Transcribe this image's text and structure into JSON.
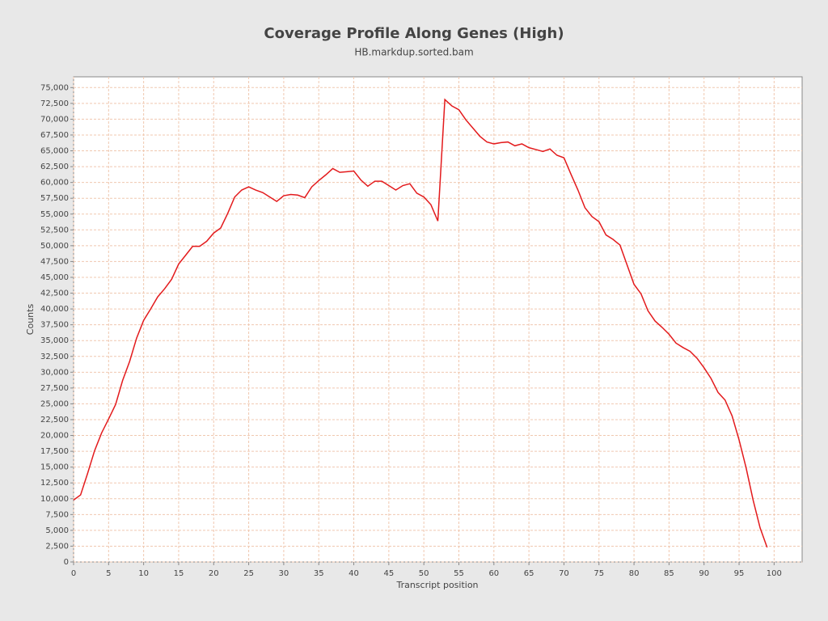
{
  "chart_data": {
    "type": "line",
    "title": "Coverage Profile Along Genes (High)",
    "subtitle": "HB.markdup.sorted.bam",
    "x_label": "Transcript position",
    "y_label": "Counts",
    "x": [
      0,
      1,
      2,
      3,
      4,
      5,
      6,
      7,
      8,
      9,
      10,
      11,
      12,
      13,
      14,
      15,
      16,
      17,
      18,
      19,
      20,
      21,
      22,
      23,
      24,
      25,
      26,
      27,
      28,
      29,
      30,
      31,
      32,
      33,
      34,
      35,
      36,
      37,
      38,
      39,
      40,
      41,
      42,
      43,
      44,
      45,
      46,
      47,
      48,
      49,
      50,
      51,
      52,
      53,
      54,
      55,
      56,
      57,
      58,
      59,
      60,
      61,
      62,
      63,
      64,
      65,
      66,
      67,
      68,
      69,
      70,
      71,
      72,
      73,
      74,
      75,
      76,
      77,
      78,
      79,
      80,
      81,
      82,
      83,
      84,
      85,
      86,
      87,
      88,
      89,
      90,
      91,
      92,
      93,
      94,
      95,
      96,
      97,
      98,
      99
    ],
    "series": [
      {
        "name": "Counts",
        "color": "#e31a1c",
        "values": [
          9800,
          10600,
          14000,
          17600,
          20400,
          22600,
          24900,
          28700,
          31700,
          35400,
          38200,
          40000,
          41900,
          43200,
          44700,
          47100,
          48500,
          49900,
          49900,
          50700,
          52000,
          52800,
          55100,
          57700,
          58800,
          59300,
          58800,
          58400,
          57700,
          57000,
          57900,
          58100,
          58000,
          57600,
          59300,
          60300,
          61200,
          62200,
          61600,
          61700,
          61800,
          60400,
          59400,
          60200,
          60200,
          59500,
          58800,
          59500,
          59800,
          58300,
          57700,
          56500,
          53900,
          73100,
          72100,
          71500,
          69900,
          68600,
          67300,
          66400,
          66100,
          66300,
          66400,
          65800,
          66100,
          65500,
          65200,
          64900,
          65300,
          64300,
          63900,
          61300,
          58800,
          56000,
          54600,
          53800,
          51700,
          51000,
          50100,
          47000,
          43900,
          42400,
          39700,
          38100,
          37100,
          36000,
          34600,
          33900,
          33300,
          32200,
          30700,
          29000,
          26800,
          25600,
          23100,
          19300,
          14900,
          9800,
          5400,
          2300
        ]
      }
    ],
    "xlim": [
      0,
      104
    ],
    "ylim": [
      0,
      76700
    ],
    "xticks": [
      0,
      5,
      10,
      15,
      20,
      25,
      30,
      35,
      40,
      45,
      50,
      55,
      60,
      65,
      70,
      75,
      80,
      85,
      90,
      95,
      100
    ],
    "yticks": [
      0,
      {
        "value": 2500,
        "label": "2,500"
      },
      {
        "value": 5000,
        "label": "5,000"
      },
      {
        "value": 7500,
        "label": "7,500"
      },
      {
        "value": 10000,
        "label": "10,000"
      },
      {
        "value": 12500,
        "label": "12,500"
      },
      {
        "value": 15000,
        "label": "15,000"
      },
      {
        "value": 17500,
        "label": "17,500"
      },
      {
        "value": 20000,
        "label": "20,000"
      },
      {
        "value": 22500,
        "label": "22,500"
      },
      {
        "value": 25000,
        "label": "25,000"
      },
      {
        "value": 27500,
        "label": "27,500"
      },
      {
        "value": 30000,
        "label": "30,000"
      },
      {
        "value": 32500,
        "label": "32,500"
      },
      {
        "value": 35000,
        "label": "35,000"
      },
      {
        "value": 37500,
        "label": "37,500"
      },
      {
        "value": 40000,
        "label": "40,000"
      },
      {
        "value": 42500,
        "label": "42,500"
      },
      {
        "value": 45000,
        "label": "45,000"
      },
      {
        "value": 47500,
        "label": "47,500"
      },
      {
        "value": 50000,
        "label": "50,000"
      },
      {
        "value": 52500,
        "label": "52,500"
      },
      {
        "value": 55000,
        "label": "55,000"
      },
      {
        "value": 57500,
        "label": "57,500"
      },
      {
        "value": 60000,
        "label": "60,000"
      },
      {
        "value": 62500,
        "label": "62,500"
      },
      {
        "value": 65000,
        "label": "65,000"
      },
      {
        "value": 67500,
        "label": "67,500"
      },
      {
        "value": 70000,
        "label": "70,000"
      },
      {
        "value": 72500,
        "label": "72,500"
      },
      {
        "value": 75000,
        "label": "75,000"
      }
    ],
    "grid": true
  }
}
